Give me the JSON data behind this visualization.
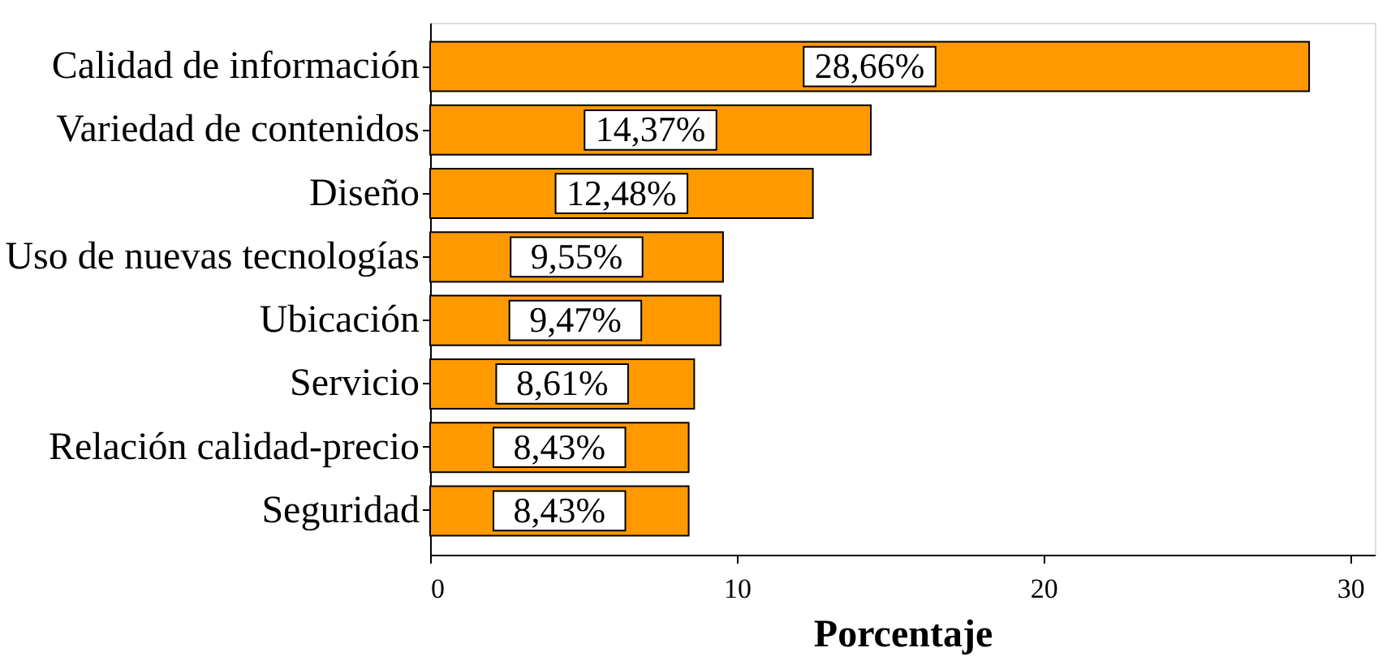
{
  "chart_data": {
    "type": "bar",
    "orientation": "horizontal",
    "xlabel": "Porcentaje",
    "categories": [
      "Calidad de información",
      "Variedad de contenidos",
      "Diseño",
      "Uso de nuevas tecnologías",
      "Ubicación",
      "Servicio",
      "Relación calidad-precio",
      "Seguridad"
    ],
    "values": [
      28.66,
      14.37,
      12.48,
      9.55,
      9.47,
      8.61,
      8.43,
      8.43
    ],
    "value_labels": [
      "28,66%",
      "14,37%",
      "12,48%",
      "9,55%",
      "9,47%",
      "8,61%",
      "8,43%",
      "8,43%"
    ],
    "color": "#ff9900",
    "xlim": [
      0,
      30.8
    ],
    "xticks": [
      0,
      10,
      20,
      30
    ],
    "grid": false
  }
}
